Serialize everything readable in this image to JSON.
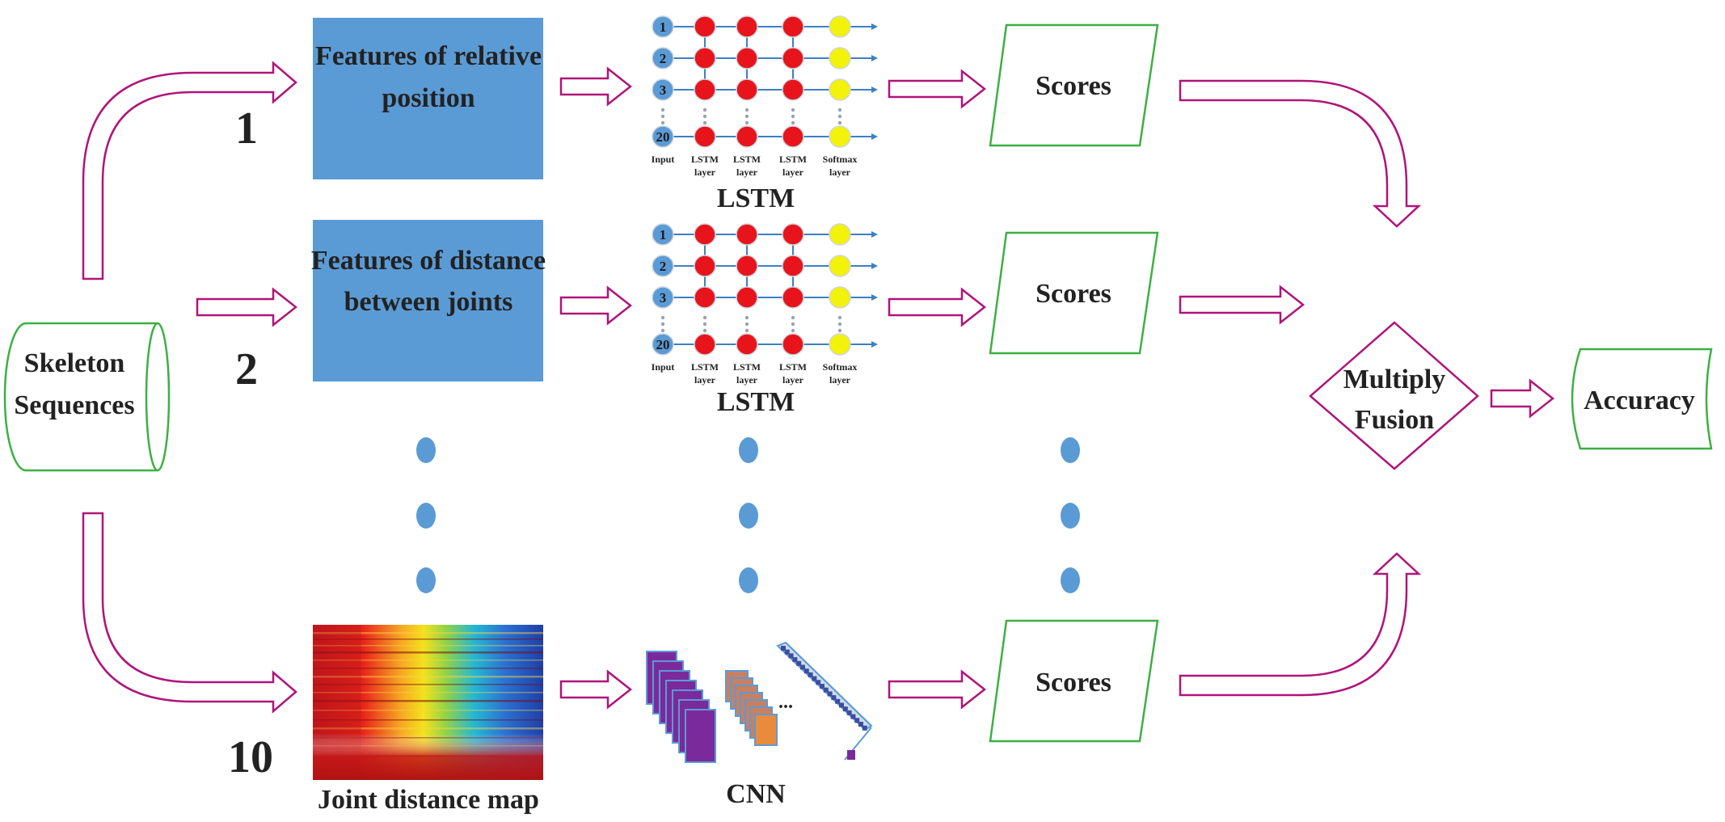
{
  "diagram": {
    "source": {
      "label_line1": "Skeleton",
      "label_line2": "Sequences"
    },
    "branch_numbers": [
      "1",
      "2",
      "10"
    ],
    "feature_boxes": [
      {
        "line1": "Features of relative",
        "line2": "position",
        "color": "#5b9bd5"
      },
      {
        "line1": "Features of distance",
        "line2": "between joints",
        "color": "#5b9bd5"
      }
    ],
    "joint_map_label": "Joint distance map",
    "lstm": {
      "caption": "LSTM",
      "node_labels": [
        "1",
        "2",
        "3",
        "20"
      ],
      "column_labels": [
        {
          "line1": "Input",
          "line2": ""
        },
        {
          "line1": "LSTM",
          "line2": "layer"
        },
        {
          "line1": "LSTM",
          "line2": "layer"
        },
        {
          "line1": "LSTM",
          "line2": "layer"
        },
        {
          "line1": "Softmax",
          "line2": "layer"
        }
      ],
      "colors": {
        "input": "#5b9bd5",
        "hidden": "#e8141c",
        "softmax": "#f2f20a",
        "edge": "#3d7fc4"
      }
    },
    "cnn": {
      "caption": "CNN",
      "ellipsis": "..."
    },
    "scores_label": "Scores",
    "fusion": {
      "line1": "Multiply",
      "line2": "Fusion"
    },
    "output": {
      "label": "Accuracy"
    },
    "colors": {
      "arrow": "#b0147a",
      "shape_border": "#3cb043",
      "dots": "#5b9bd5"
    }
  }
}
